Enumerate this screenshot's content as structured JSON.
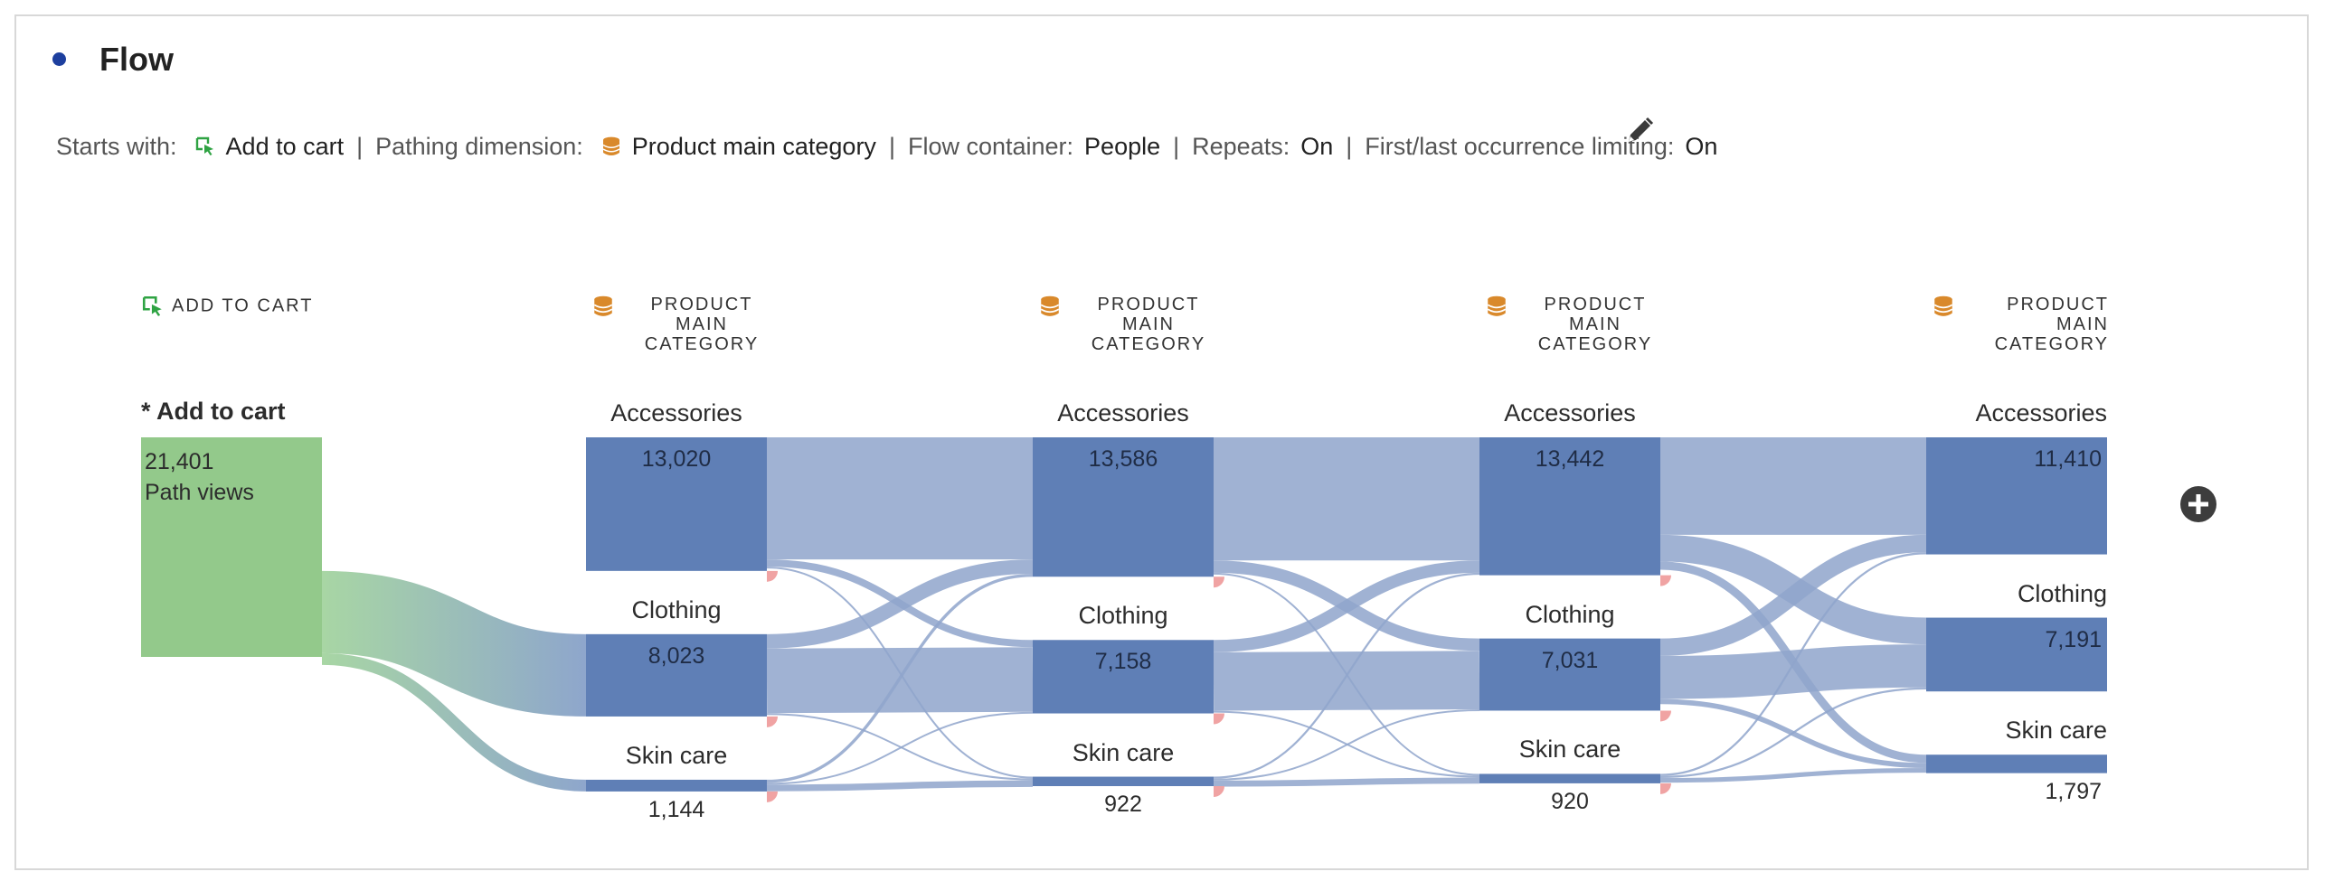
{
  "panel": {
    "title": "Flow"
  },
  "summary": {
    "starts_with_label": "Starts with:",
    "starts_with_value": "Add to cart",
    "pathing_dimension_label": "Pathing dimension:",
    "pathing_dimension_value": "Product main category",
    "flow_container_label": "Flow container:",
    "flow_container_value": "People",
    "repeats_label": "Repeats:",
    "repeats_value": "On",
    "limiting_label": "First/last occurrence limiting:",
    "limiting_value": "On",
    "separator": "|"
  },
  "icons": {
    "start": "cursor-select-icon",
    "dimension": "database-dimension-icon",
    "edit": "pencil-icon",
    "add": "add-circle-icon"
  },
  "colors": {
    "entry_node": "#93c98b",
    "dimension_node": "#5f7fb6",
    "flow_band": "#8fa5cb",
    "exit_marker": "#f0a3a3",
    "entry_icon": "#2fa343",
    "dimension_icon": "#d9892b",
    "title_dot": "#1d3f9e"
  },
  "columns": [
    {
      "header": "Add to cart"
    },
    {
      "header": "Product main category"
    },
    {
      "header": "Product main category"
    },
    {
      "header": "Product main category"
    },
    {
      "header": "Product main category"
    }
  ],
  "entry": {
    "label": "* Add to cart",
    "value": "21,401",
    "unit": "Path views"
  },
  "chart_data": {
    "type": "flow",
    "steps": [
      {
        "nodes": [
          {
            "name": "* Add to cart",
            "value": 21401
          }
        ]
      },
      {
        "nodes": [
          {
            "name": "Accessories",
            "value": 13020,
            "label": "13,020"
          },
          {
            "name": "Clothing",
            "value": 8023,
            "label": "8,023"
          },
          {
            "name": "Skin care",
            "value": 1144,
            "label": "1,144"
          }
        ]
      },
      {
        "nodes": [
          {
            "name": "Accessories",
            "value": 13586,
            "label": "13,586"
          },
          {
            "name": "Clothing",
            "value": 7158,
            "label": "7,158"
          },
          {
            "name": "Skin care",
            "value": 922,
            "label": "922"
          }
        ]
      },
      {
        "nodes": [
          {
            "name": "Accessories",
            "value": 13442,
            "label": "13,442"
          },
          {
            "name": "Clothing",
            "value": 7031,
            "label": "7,031"
          },
          {
            "name": "Skin care",
            "value": 920,
            "label": "920"
          }
        ]
      },
      {
        "nodes": [
          {
            "name": "Accessories",
            "value": 11410,
            "label": "11,410"
          },
          {
            "name": "Clothing",
            "value": 7191,
            "label": "7,191"
          },
          {
            "name": "Skin care",
            "value": 1797,
            "label": "1,797"
          }
        ]
      }
    ],
    "links": [
      {
        "from": [
          0,
          0
        ],
        "to": [
          1,
          0
        ],
        "value": 13020
      },
      {
        "from": [
          0,
          0
        ],
        "to": [
          1,
          1
        ],
        "value": 8023
      },
      {
        "from": [
          0,
          0
        ],
        "to": [
          1,
          2
        ],
        "value": 1144
      },
      {
        "from": [
          1,
          0
        ],
        "to": [
          2,
          0
        ],
        "value": 11900
      },
      {
        "from": [
          1,
          0
        ],
        "to": [
          2,
          1
        ],
        "value": 700
      },
      {
        "from": [
          1,
          0
        ],
        "to": [
          2,
          2
        ],
        "value": 150
      },
      {
        "from": [
          1,
          1
        ],
        "to": [
          2,
          0
        ],
        "value": 1400
      },
      {
        "from": [
          1,
          1
        ],
        "to": [
          2,
          1
        ],
        "value": 6300
      },
      {
        "from": [
          1,
          1
        ],
        "to": [
          2,
          2
        ],
        "value": 120
      },
      {
        "from": [
          1,
          2
        ],
        "to": [
          2,
          0
        ],
        "value": 300
      },
      {
        "from": [
          1,
          2
        ],
        "to": [
          2,
          1
        ],
        "value": 150
      },
      {
        "from": [
          1,
          2
        ],
        "to": [
          2,
          2
        ],
        "value": 650
      },
      {
        "from": [
          2,
          0
        ],
        "to": [
          3,
          0
        ],
        "value": 12000
      },
      {
        "from": [
          2,
          0
        ],
        "to": [
          3,
          1
        ],
        "value": 1200
      },
      {
        "from": [
          2,
          0
        ],
        "to": [
          3,
          2
        ],
        "value": 130
      },
      {
        "from": [
          2,
          1
        ],
        "to": [
          3,
          0
        ],
        "value": 1200
      },
      {
        "from": [
          2,
          1
        ],
        "to": [
          3,
          1
        ],
        "value": 5700
      },
      {
        "from": [
          2,
          1
        ],
        "to": [
          3,
          2
        ],
        "value": 100
      },
      {
        "from": [
          2,
          2
        ],
        "to": [
          3,
          0
        ],
        "value": 200
      },
      {
        "from": [
          2,
          2
        ],
        "to": [
          3,
          1
        ],
        "value": 100
      },
      {
        "from": [
          2,
          2
        ],
        "to": [
          3,
          2
        ],
        "value": 600
      },
      {
        "from": [
          3,
          0
        ],
        "to": [
          4,
          0
        ],
        "value": 9500
      },
      {
        "from": [
          3,
          0
        ],
        "to": [
          4,
          1
        ],
        "value": 2600
      },
      {
        "from": [
          3,
          0
        ],
        "to": [
          4,
          2
        ],
        "value": 800
      },
      {
        "from": [
          3,
          1
        ],
        "to": [
          4,
          0
        ],
        "value": 1700
      },
      {
        "from": [
          3,
          1
        ],
        "to": [
          4,
          1
        ],
        "value": 4200
      },
      {
        "from": [
          3,
          1
        ],
        "to": [
          4,
          2
        ],
        "value": 500
      },
      {
        "from": [
          3,
          2
        ],
        "to": [
          4,
          0
        ],
        "value": 200
      },
      {
        "from": [
          3,
          2
        ],
        "to": [
          4,
          1
        ],
        "value": 200
      },
      {
        "from": [
          3,
          2
        ],
        "to": [
          4,
          2
        ],
        "value": 450
      }
    ]
  }
}
